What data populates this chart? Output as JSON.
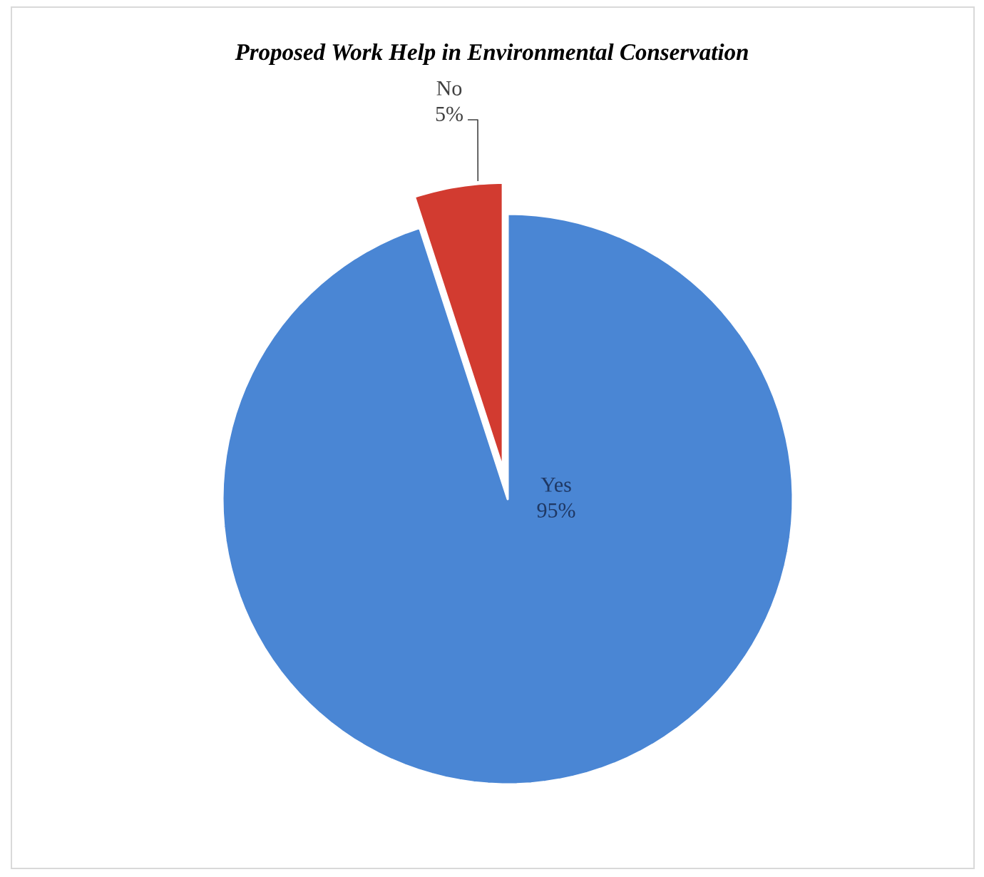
{
  "chart_data": {
    "type": "pie",
    "title": "Proposed Work Help in Environmental Conservation",
    "categories": [
      "Yes",
      "No"
    ],
    "values": [
      95,
      5
    ],
    "value_labels": [
      "95%",
      "5%"
    ],
    "colors": [
      "#4a86d4",
      "#d23b30"
    ]
  }
}
